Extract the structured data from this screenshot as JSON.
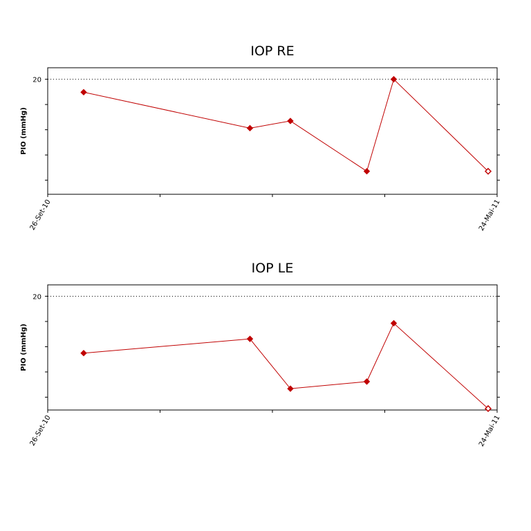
{
  "chart_data": [
    {
      "type": "line",
      "title": "IOP RE",
      "ylabel": "PIO (mmHg)",
      "xlabel": "",
      "x_tick_labels": [
        "26-Set-10",
        "24-Mai-11"
      ],
      "y_tick_labels": [
        "20"
      ],
      "reference_line": 20,
      "ylim": [
        12,
        20.8
      ],
      "series": [
        {
          "color": "#c00000",
          "points": [
            {
              "x": 0.08,
              "y": 19.1
            },
            {
              "x": 0.45,
              "y": 16.6
            },
            {
              "x": 0.54,
              "y": 17.1
            },
            {
              "x": 0.71,
              "y": 13.6
            },
            {
              "x": 0.77,
              "y": 20.0
            },
            {
              "x": 0.98,
              "y": 13.6,
              "hollow": true
            }
          ]
        }
      ]
    },
    {
      "type": "line",
      "title": "IOP LE",
      "ylabel": "PIO (mmHg)",
      "xlabel": "",
      "x_tick_labels": [
        "26-Set-10",
        "24-Mai-11"
      ],
      "y_tick_labels": [
        "20"
      ],
      "reference_line": 20,
      "ylim": [
        12,
        20.8
      ],
      "series": [
        {
          "color": "#c00000",
          "points": [
            {
              "x": 0.08,
              "y": 16.0
            },
            {
              "x": 0.45,
              "y": 17.0
            },
            {
              "x": 0.54,
              "y": 13.5
            },
            {
              "x": 0.71,
              "y": 14.0
            },
            {
              "x": 0.77,
              "y": 18.1
            },
            {
              "x": 0.98,
              "y": 12.1,
              "hollow": true
            }
          ]
        }
      ]
    }
  ]
}
